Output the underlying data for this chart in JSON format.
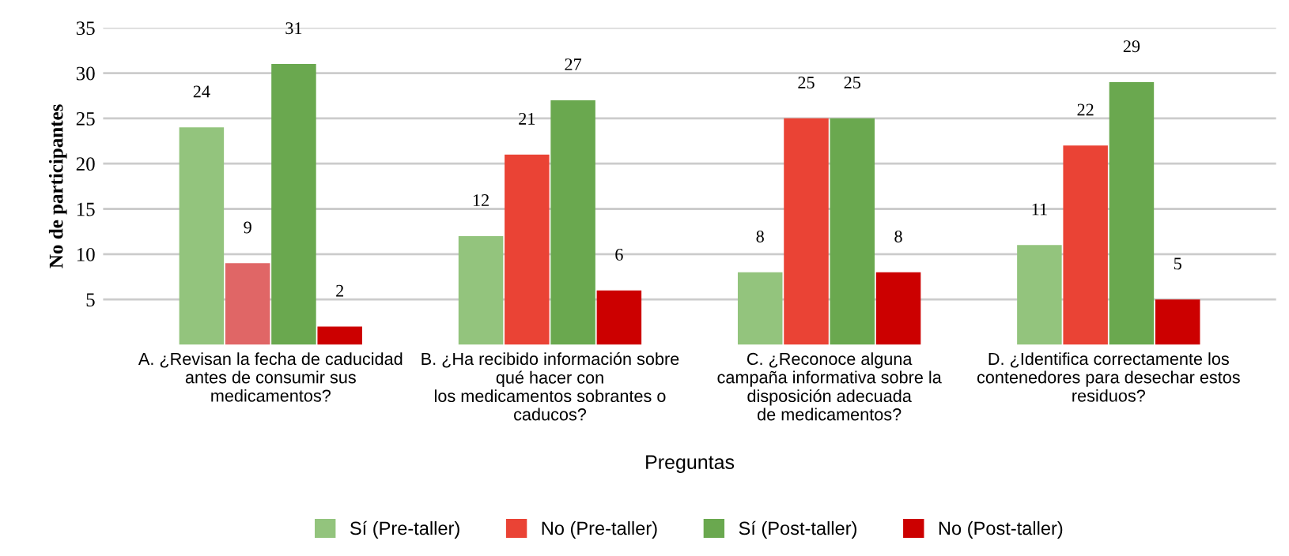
{
  "chart_data": {
    "type": "bar",
    "xlabel": "Preguntas",
    "ylabel": "No de participantes",
    "categories": [
      "A. ¿Revisan la fecha de caducidad\nantes de consumir sus\nmedicamentos?",
      "B. ¿Ha recibido información sobre\nqué hacer con\nlos medicamentos sobrantes o\ncaducos?",
      "C. ¿Reconoce alguna\ncampaña informativa sobre la\ndisposición adecuada\nde medicamentos?",
      "D. ¿Identifica correctamente los\ncontenedores para desechar estos\nresiduos?"
    ],
    "series": [
      {
        "name": "Sí (Pre-taller)",
        "color": "#93c47d",
        "values": [
          24,
          12,
          8,
          11
        ]
      },
      {
        "name": "No (Pre-taller)",
        "color": "#ea4335",
        "colors": [
          "#e06666",
          "#ea4335",
          "#ea4335",
          "#ea4335"
        ],
        "values": [
          9,
          21,
          25,
          22
        ]
      },
      {
        "name": "Sí (Post-taller)",
        "color": "#6aa84f",
        "values": [
          31,
          27,
          25,
          29
        ]
      },
      {
        "name": "No (Post-taller)",
        "color": "#cc0000",
        "values": [
          2,
          6,
          8,
          5
        ]
      }
    ],
    "ylim": [
      0,
      35
    ],
    "yticks": [
      5,
      10,
      15,
      20,
      25,
      30,
      35
    ],
    "grid": "y",
    "data_labels": true,
    "legend": "bottom"
  }
}
